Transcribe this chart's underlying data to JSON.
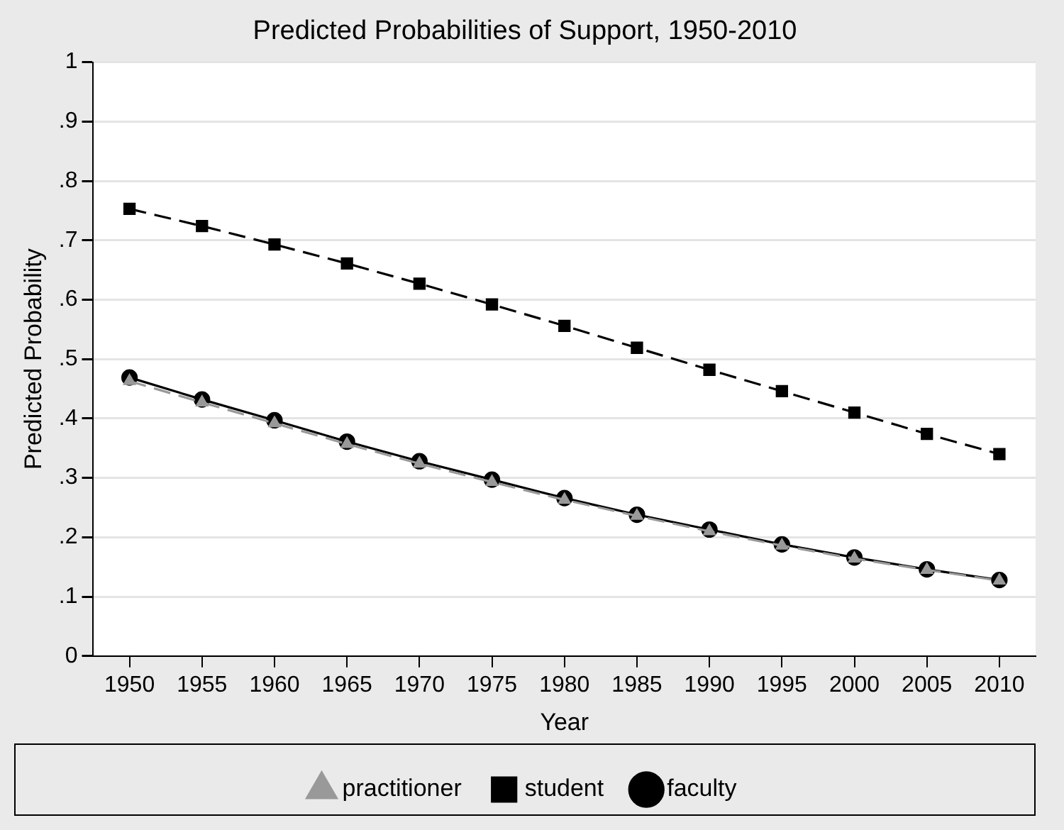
{
  "chart_data": {
    "type": "line",
    "title": "Predicted Probabilities of Support, 1950-2010",
    "xlabel": "Year",
    "ylabel": "Predicted Probability",
    "categories": [
      "1950",
      "1955",
      "1960",
      "1965",
      "1970",
      "1975",
      "1980",
      "1985",
      "1990",
      "1995",
      "2000",
      "2005",
      "2010"
    ],
    "series": [
      {
        "name": "faculty",
        "color": "#000000",
        "marker": "circle",
        "line_style": "solid",
        "values": [
          0.469,
          0.432,
          0.397,
          0.361,
          0.328,
          0.297,
          0.266,
          0.238,
          0.213,
          0.188,
          0.166,
          0.146,
          0.128
        ]
      },
      {
        "name": "student",
        "color": "#000000",
        "marker": "square",
        "line_style": "dashed",
        "values": [
          0.753,
          0.724,
          0.693,
          0.661,
          0.627,
          0.592,
          0.556,
          0.519,
          0.482,
          0.446,
          0.41,
          0.374,
          0.34
        ]
      },
      {
        "name": "practitioner",
        "color": "#999999",
        "marker": "triangle",
        "line_style": "dashed",
        "values": [
          0.463,
          0.427,
          0.392,
          0.357,
          0.324,
          0.293,
          0.263,
          0.236,
          0.21,
          0.186,
          0.164,
          0.145,
          0.127
        ]
      }
    ],
    "ylim": [
      0,
      1
    ],
    "yticks": [
      {
        "value": 0,
        "label": "0"
      },
      {
        "value": 0.1,
        "label": ".1"
      },
      {
        "value": 0.2,
        "label": ".2"
      },
      {
        "value": 0.3,
        "label": ".3"
      },
      {
        "value": 0.4,
        "label": ".4"
      },
      {
        "value": 0.5,
        "label": ".5"
      },
      {
        "value": 0.6,
        "label": ".6"
      },
      {
        "value": 0.7,
        "label": ".7"
      },
      {
        "value": 0.8,
        "label": ".8"
      },
      {
        "value": 0.9,
        "label": ".9"
      },
      {
        "value": 1,
        "label": "1"
      }
    ],
    "grid": "y",
    "legend": "bottom"
  }
}
